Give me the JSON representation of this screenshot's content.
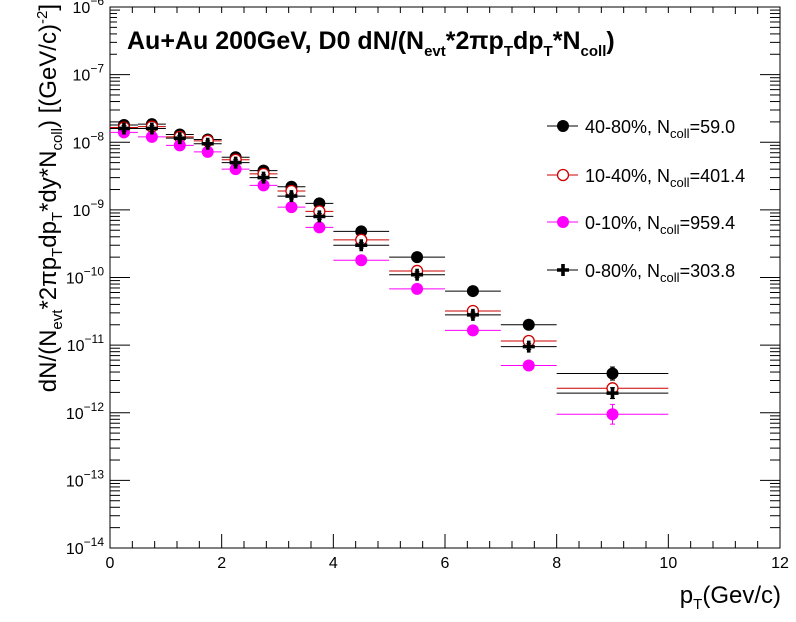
{
  "chart_data": {
    "type": "scatter",
    "title": "Au+Au 200GeV, D0 dN/(N_evt*2πp_Tdp_T*N_coll)",
    "title_parts": {
      "t1": "Au+Au 200GeV, D0 dN/(N",
      "t2": "evt",
      "t3": "*2πp",
      "t4": "T",
      "t5": "dp",
      "t6": "T",
      "t7": "*N",
      "t8": "coll",
      "t9": ")"
    },
    "xlabel": "p_T(Gev/c)",
    "xlabel_parts": {
      "a": "p",
      "b": "T",
      "c": "(Gev/c)"
    },
    "ylabel": "dN/(N_evt*2πp_Tdp_T*dy*N_coll) [(GeV/c)^-2]",
    "ylabel_parts": {
      "a": "dN/(N",
      "b": "evt",
      "c": "*2πp",
      "d": "T",
      "e": "dp",
      "f": "T",
      "g": "*dy*N",
      "h": "coll",
      "i": ") [(GeV/c)",
      "j": "-2",
      "k": "]"
    },
    "xlim": [
      0,
      12
    ],
    "ylim": [
      1e-14,
      1e-06
    ],
    "y_log": true,
    "x_ticks": [
      {
        "v": 0,
        "label": "0"
      },
      {
        "v": 2,
        "label": "2"
      },
      {
        "v": 4,
        "label": "4"
      },
      {
        "v": 6,
        "label": "6"
      },
      {
        "v": 8,
        "label": "8"
      },
      {
        "v": 10,
        "label": "10"
      },
      {
        "v": 12,
        "label": "12"
      }
    ],
    "y_ticks": [
      {
        "exp": -14,
        "base": "10",
        "pow": "−14"
      },
      {
        "exp": -13,
        "base": "10",
        "pow": "−13"
      },
      {
        "exp": -12,
        "base": "10",
        "pow": "−12"
      },
      {
        "exp": -11,
        "base": "10",
        "pow": "−11"
      },
      {
        "exp": -10,
        "base": "10",
        "pow": "−10"
      },
      {
        "exp": -9,
        "base": "10",
        "pow": "−9"
      },
      {
        "exp": -8,
        "base": "10",
        "pow": "−8"
      },
      {
        "exp": -7,
        "base": "10",
        "pow": "−7"
      },
      {
        "exp": -6,
        "base": "10",
        "pow": "−6"
      }
    ],
    "legend_position": "right",
    "x": [
      0.25,
      0.75,
      1.25,
      1.75,
      2.25,
      2.75,
      3.25,
      3.75,
      4.5,
      5.5,
      6.5,
      7.5,
      9.0
    ],
    "x_err": [
      0.25,
      0.25,
      0.25,
      0.25,
      0.25,
      0.25,
      0.25,
      0.25,
      0.5,
      0.5,
      0.5,
      0.5,
      1.0
    ],
    "series": [
      {
        "name": "40-80%, N_coll=59.0",
        "legend_main": "40-80%, N",
        "legend_sub": "coll",
        "legend_tail": "=59.0",
        "marker": "filled-circle",
        "color": "#000000",
        "values": [
          1.8e-08,
          1.85e-08,
          1.3e-08,
          1.1e-08,
          6e-09,
          3.8e-09,
          2.2e-09,
          1.25e-09,
          4.8e-10,
          2e-10,
          6.3e-11,
          2e-11,
          3.8e-12
        ],
        "y_err_factor": [
          1.1,
          1.1,
          1.1,
          1.1,
          1.1,
          1.1,
          1.1,
          1.1,
          1.1,
          1.1,
          1.1,
          1.1,
          1.25
        ]
      },
      {
        "name": "10-40%, N_coll=401.4",
        "legend_main": "10-40%, N",
        "legend_sub": "coll",
        "legend_tail": "=401.4",
        "marker": "open-circle",
        "color": "#cc0000",
        "values": [
          1.65e-08,
          1.7e-08,
          1.2e-08,
          1.05e-08,
          5.5e-09,
          3.4e-09,
          1.9e-09,
          9.5e-10,
          3.6e-10,
          1.25e-10,
          3.2e-11,
          1.15e-11,
          2.3e-12
        ],
        "y_err_factor": [
          1.1,
          1.1,
          1.1,
          1.1,
          1.1,
          1.1,
          1.1,
          1.1,
          1.1,
          1.1,
          1.1,
          1.1,
          1.2
        ]
      },
      {
        "name": "0-10%, N_coll=959.4",
        "legend_main": "0-10%, N",
        "legend_sub": "coll",
        "legend_tail": "=959.4",
        "marker": "filled-circle",
        "color": "#ff00ff",
        "values": [
          1.4e-08,
          1.2e-08,
          9e-09,
          7.2e-09,
          4e-09,
          2.3e-09,
          1.1e-09,
          5.5e-10,
          1.8e-10,
          6.8e-11,
          1.65e-11,
          5e-12,
          9.5e-13
        ],
        "y_err_factor": [
          1.1,
          1.1,
          1.1,
          1.1,
          1.1,
          1.1,
          1.1,
          1.1,
          1.1,
          1.1,
          1.1,
          1.1,
          1.4
        ]
      },
      {
        "name": "0-80%, N_coll=303.8",
        "legend_main": "0-80%, N",
        "legend_sub": "coll",
        "legend_tail": "=303.8",
        "marker": "cross",
        "color": "#000000",
        "values": [
          1.6e-08,
          1.6e-08,
          1.15e-08,
          9.5e-09,
          5e-09,
          3e-09,
          1.6e-09,
          8e-10,
          3e-10,
          1.1e-10,
          2.8e-11,
          9.5e-12,
          1.95e-12
        ],
        "y_err_factor": [
          1.1,
          1.1,
          1.1,
          1.1,
          1.1,
          1.1,
          1.1,
          1.1,
          1.1,
          1.1,
          1.1,
          1.1,
          1.2
        ]
      }
    ]
  }
}
